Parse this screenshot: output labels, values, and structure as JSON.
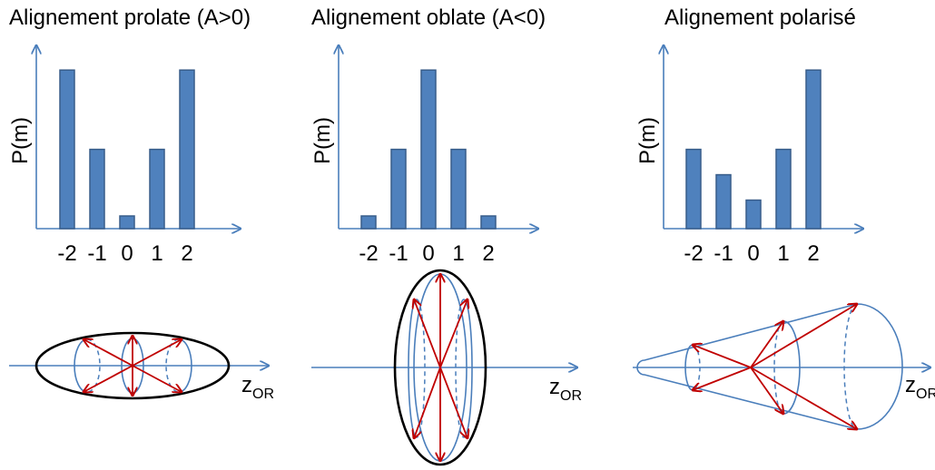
{
  "colors": {
    "axis": "#4a7ebb",
    "bar_fill": "#4f81bd",
    "bar_stroke": "#385d8a",
    "arrow": "#c00000",
    "outline": "#000000"
  },
  "panels": [
    {
      "title": "Alignement prolate (A>0)",
      "ylabel": "P(m)",
      "zlabel_main": "z",
      "zlabel_sub": "OR"
    },
    {
      "title": "Alignement oblate (A<0)",
      "ylabel": "P(m)",
      "zlabel_main": "z",
      "zlabel_sub": "OR"
    },
    {
      "title": "Alignement polarisé",
      "ylabel": "P(m)",
      "zlabel_main": "z",
      "zlabel_sub": "OR"
    }
  ],
  "chart_data": [
    {
      "type": "bar",
      "title": "Alignement prolate (A>0)",
      "ylabel": "P(m)",
      "xlabel": "",
      "categories": [
        "-2",
        "-1",
        "0",
        "1",
        "2"
      ],
      "values": [
        1.0,
        0.5,
        0.08,
        0.5,
        1.0
      ],
      "ylim": [
        0,
        1.15
      ]
    },
    {
      "type": "bar",
      "title": "Alignement oblate (A<0)",
      "ylabel": "P(m)",
      "xlabel": "",
      "categories": [
        "-2",
        "-1",
        "0",
        "1",
        "2"
      ],
      "values": [
        0.08,
        0.5,
        1.0,
        0.5,
        0.08
      ],
      "ylim": [
        0,
        1.15
      ]
    },
    {
      "type": "bar",
      "title": "Alignement polarisé",
      "ylabel": "P(m)",
      "xlabel": "",
      "categories": [
        "-2",
        "-1",
        "0",
        "1",
        "2"
      ],
      "values": [
        0.5,
        0.34,
        0.18,
        0.5,
        1.0
      ],
      "ylim": [
        0,
        1.15
      ]
    }
  ]
}
